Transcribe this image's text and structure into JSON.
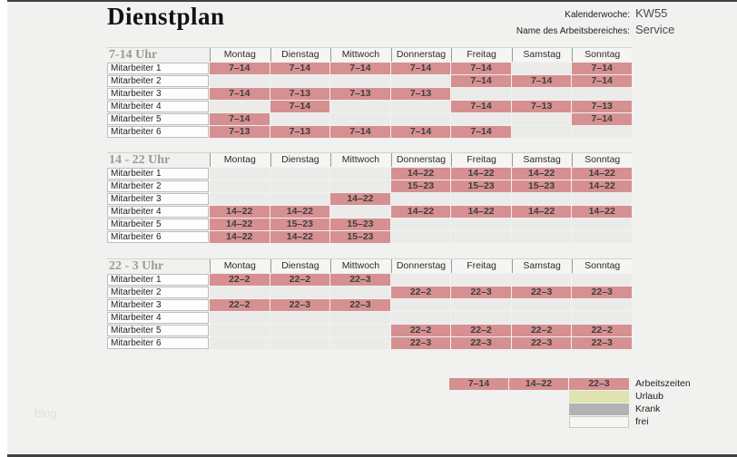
{
  "header": {
    "title": "Dienstplan",
    "calendar_week_label": "Kalenderwoche:",
    "calendar_week_value": "KW55",
    "work_area_label": "Name des Arbeitsbereiches:",
    "work_area_value": "Service"
  },
  "days": [
    "Montag",
    "Dienstag",
    "Mittwoch",
    "Donnerstag",
    "Freitag",
    "Samstag",
    "Sonntag"
  ],
  "sections": [
    {
      "title": "7-14 Uhr",
      "rows": [
        {
          "label": "Mitarbeiter 1",
          "cells": [
            "7–14",
            "7–14",
            "7–14",
            "7–14",
            "7–14",
            "",
            "7–14"
          ]
        },
        {
          "label": "Mitarbeiter 2",
          "cells": [
            "",
            "",
            "",
            "",
            "7–14",
            "7–14",
            "7–14"
          ]
        },
        {
          "label": "Mitarbeiter 3",
          "cells": [
            "7–14",
            "7–13",
            "7–13",
            "7–13",
            "",
            "",
            ""
          ]
        },
        {
          "label": "Mitarbeiter 4",
          "cells": [
            "",
            "7–14",
            "",
            "",
            "7–14",
            "7–13",
            "7–13"
          ]
        },
        {
          "label": "Mitarbeiter 5",
          "cells": [
            "7–14",
            "",
            "",
            "",
            "",
            "",
            "7–14"
          ]
        },
        {
          "label": "Mitarbeiter 6",
          "cells": [
            "7–13",
            "7–13",
            "7–14",
            "7–14",
            "7–14",
            "",
            ""
          ]
        }
      ]
    },
    {
      "title": "14 - 22 Uhr",
      "rows": [
        {
          "label": "Mitarbeiter 1",
          "cells": [
            "",
            "",
            "",
            "14–22",
            "14–22",
            "14–22",
            "14–22"
          ]
        },
        {
          "label": "Mitarbeiter 2",
          "cells": [
            "",
            "",
            "",
            "15–23",
            "15–23",
            "15–23",
            "14–22"
          ]
        },
        {
          "label": "Mitarbeiter 3",
          "cells": [
            "",
            "",
            "14–22",
            "",
            "",
            "",
            ""
          ]
        },
        {
          "label": "Mitarbeiter 4",
          "cells": [
            "14–22",
            "14–22",
            "",
            "14–22",
            "14–22",
            "14–22",
            "14–22"
          ]
        },
        {
          "label": "Mitarbeiter 5",
          "cells": [
            "14–22",
            "15–23",
            "15–23",
            "",
            "",
            "",
            ""
          ]
        },
        {
          "label": "Mitarbeiter 6",
          "cells": [
            "14–22",
            "14–22",
            "15–23",
            "",
            "",
            "",
            ""
          ]
        }
      ]
    },
    {
      "title": "22 - 3 Uhr",
      "rows": [
        {
          "label": "Mitarbeiter 1",
          "cells": [
            "22–2",
            "22–2",
            "22–3",
            "",
            "",
            "",
            ""
          ]
        },
        {
          "label": "Mitarbeiter 2",
          "cells": [
            "",
            "",
            "",
            "22–2",
            "22–3",
            "22–3",
            "22–3"
          ]
        },
        {
          "label": "Mitarbeiter 3",
          "cells": [
            "22–2",
            "22–3",
            "22–3",
            "",
            "",
            "",
            ""
          ]
        },
        {
          "label": "Mitarbeiter 4",
          "cells": [
            "",
            "",
            "",
            "",
            "",
            "",
            ""
          ]
        },
        {
          "label": "Mitarbeiter 5",
          "cells": [
            "",
            "",
            "",
            "22–2",
            "22–2",
            "22–2",
            "22–2"
          ]
        },
        {
          "label": "Mitarbeiter 6",
          "cells": [
            "",
            "",
            "",
            "22–3",
            "22–3",
            "22–3",
            "22–3"
          ]
        }
      ]
    }
  ],
  "legend": {
    "shift_samples": [
      "7–14",
      "14–22",
      "22–3"
    ],
    "items": [
      {
        "label": "Arbeitszeiten",
        "color_key": "shift"
      },
      {
        "label": "Urlaub",
        "color_key": "urlaub"
      },
      {
        "label": "Krank",
        "color_key": "krank"
      },
      {
        "label": "frei",
        "color_key": "frei"
      }
    ]
  },
  "watermark": "blog",
  "colors": {
    "shift": "#d69091",
    "empty": "#ebebe9",
    "urlaub": "#dfe3ad",
    "krank": "#b2b2b2",
    "frei": "#f6f6f1",
    "page_bg": "#f1f1ef",
    "frame": "#414141"
  }
}
